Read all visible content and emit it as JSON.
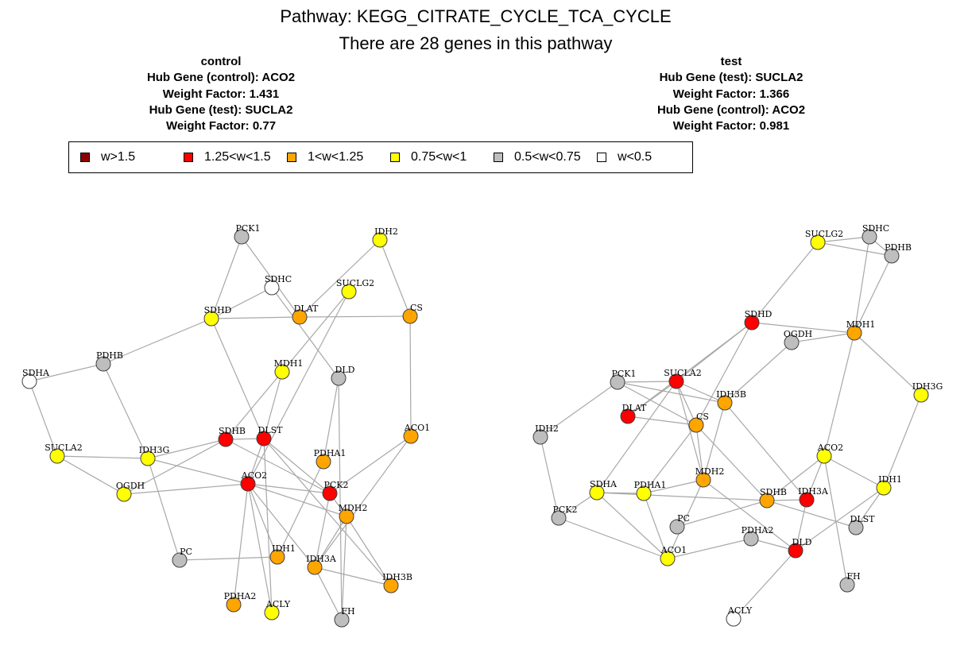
{
  "title": {
    "line1": "Pathway: KEGG_CITRATE_CYCLE_TCA_CYCLE",
    "line2": "There are 28 genes in this pathway"
  },
  "control_info": {
    "heading": "control",
    "hub_control": "Hub Gene (control):   ACO2",
    "weight_control": "Weight Factor:   1.431",
    "hub_test": "Hub Gene (test):   SUCLA2",
    "weight_test": "Weight Factor:   0.77"
  },
  "test_info": {
    "heading": "test",
    "hub_test": "Hub Gene (test):   SUCLA2",
    "weight_test": "Weight Factor:   1.366",
    "hub_control": "Hub Gene (control):   ACO2",
    "weight_control": "Weight Factor:   0.981"
  },
  "legend": [
    {
      "label": "w>1.5",
      "color": "#8b0000"
    },
    {
      "label": "1.25<w<1.5",
      "color": "#ff0000"
    },
    {
      "label": "1<w<1.25",
      "color": "#ffa500"
    },
    {
      "label": "0.75<w<1",
      "color": "#ffff00"
    },
    {
      "label": "0.5<w<0.75",
      "color": "#bebebe"
    },
    {
      "label": "w<0.5",
      "color": "#ffffff"
    }
  ],
  "networks": [
    {
      "name": "control",
      "nodes": [
        {
          "id": "PCK1",
          "color": "#bebebe"
        },
        {
          "id": "IDH2",
          "color": "#ffff00"
        },
        {
          "id": "SDHC",
          "color": "#ffffff"
        },
        {
          "id": "SUCLG2",
          "color": "#ffff00"
        },
        {
          "id": "SDHD",
          "color": "#ffff00"
        },
        {
          "id": "DLAT",
          "color": "#ffa500"
        },
        {
          "id": "CS",
          "color": "#ffa500"
        },
        {
          "id": "PDHB",
          "color": "#bebebe"
        },
        {
          "id": "MDH1",
          "color": "#ffff00"
        },
        {
          "id": "DLD",
          "color": "#bebebe"
        },
        {
          "id": "SDHA",
          "color": "#ffffff"
        },
        {
          "id": "SDHB",
          "color": "#ff0000"
        },
        {
          "id": "DLST",
          "color": "#ff0000"
        },
        {
          "id": "ACO1",
          "color": "#ffa500"
        },
        {
          "id": "SUCLA2",
          "color": "#ffff00"
        },
        {
          "id": "IDH3G",
          "color": "#ffff00"
        },
        {
          "id": "PDHA1",
          "color": "#ffa500"
        },
        {
          "id": "ACO2",
          "color": "#ff0000"
        },
        {
          "id": "PCK2",
          "color": "#ff0000"
        },
        {
          "id": "OGDH",
          "color": "#ffff00"
        },
        {
          "id": "MDH2",
          "color": "#ffa500"
        },
        {
          "id": "PC",
          "color": "#bebebe"
        },
        {
          "id": "IDH1",
          "color": "#ffa500"
        },
        {
          "id": "IDH3A",
          "color": "#ffa500"
        },
        {
          "id": "IDH3B",
          "color": "#ffa500"
        },
        {
          "id": "PDHA2",
          "color": "#ffa500"
        },
        {
          "id": "ACLY",
          "color": "#ffff00"
        },
        {
          "id": "FH",
          "color": "#bebebe"
        }
      ],
      "edges": [
        [
          "PCK1",
          "SDHD"
        ],
        [
          "PCK1",
          "DLAT"
        ],
        [
          "SDHC",
          "SDHD"
        ],
        [
          "SDHC",
          "DLD"
        ],
        [
          "IDH2",
          "DLAT"
        ],
        [
          "IDH2",
          "CS"
        ],
        [
          "SDHD",
          "DLAT"
        ],
        [
          "DLAT",
          "CS"
        ],
        [
          "SDHD",
          "PDHB"
        ],
        [
          "SDHD",
          "DLST"
        ],
        [
          "SUCLG2",
          "MDH1"
        ],
        [
          "SUCLG2",
          "ACO2"
        ],
        [
          "CS",
          "ACO1"
        ],
        [
          "PDHB",
          "SDHA"
        ],
        [
          "PDHB",
          "IDH3G"
        ],
        [
          "SDHA",
          "SUCLA2"
        ],
        [
          "SUCLA2",
          "IDH3G"
        ],
        [
          "SUCLA2",
          "OGDH"
        ],
        [
          "IDH3G",
          "SDHB"
        ],
        [
          "IDH3G",
          "PC"
        ],
        [
          "IDH3G",
          "ACO2"
        ],
        [
          "OGDH",
          "SDHB"
        ],
        [
          "MDH1",
          "SDHB"
        ],
        [
          "MDH1",
          "DLST"
        ],
        [
          "SDHB",
          "DLST"
        ],
        [
          "SDHB",
          "PCK2"
        ],
        [
          "DLST",
          "PCK2"
        ],
        [
          "DLST",
          "ACO2"
        ],
        [
          "DLST",
          "ACLY"
        ],
        [
          "DLST",
          "IDH3B"
        ],
        [
          "DLD",
          "PDHA1"
        ],
        [
          "DLD",
          "FH"
        ],
        [
          "ACO1",
          "PCK2"
        ],
        [
          "ACO1",
          "IDH3A"
        ],
        [
          "PDHA1",
          "IDH1"
        ],
        [
          "ACO2",
          "PCK2"
        ],
        [
          "ACO2",
          "MDH2"
        ],
        [
          "ACO2",
          "IDH1"
        ],
        [
          "ACO2",
          "PDHA2"
        ],
        [
          "ACO2",
          "ACLY"
        ],
        [
          "ACO2",
          "IDH3A"
        ],
        [
          "PCK2",
          "MDH2"
        ],
        [
          "PCK2",
          "IDH3A"
        ],
        [
          "MDH2",
          "IDH3A"
        ],
        [
          "MDH2",
          "IDH3B"
        ],
        [
          "MDH2",
          "FH"
        ],
        [
          "IDH3A",
          "IDH3B"
        ],
        [
          "IDH3A",
          "FH"
        ],
        [
          "PC",
          "IDH1"
        ],
        [
          "ACO2",
          "OGDH"
        ]
      ]
    },
    {
      "name": "test",
      "nodes": [
        {
          "id": "SUCLG2",
          "color": "#ffff00"
        },
        {
          "id": "SDHC",
          "color": "#bebebe"
        },
        {
          "id": "PDHB",
          "color": "#bebebe"
        },
        {
          "id": "SDHD",
          "color": "#ff0000"
        },
        {
          "id": "MDH1",
          "color": "#ffa500"
        },
        {
          "id": "OGDH",
          "color": "#bebebe"
        },
        {
          "id": "PCK1",
          "color": "#bebebe"
        },
        {
          "id": "SUCLA2",
          "color": "#ff0000"
        },
        {
          "id": "IDH3B",
          "color": "#ffa500"
        },
        {
          "id": "IDH3G",
          "color": "#ffff00"
        },
        {
          "id": "DLAT",
          "color": "#ff0000"
        },
        {
          "id": "CS",
          "color": "#ffa500"
        },
        {
          "id": "IDH2",
          "color": "#bebebe"
        },
        {
          "id": "ACO2",
          "color": "#ffff00"
        },
        {
          "id": "MDH2",
          "color": "#ffa500"
        },
        {
          "id": "IDH1",
          "color": "#ffff00"
        },
        {
          "id": "SDHA",
          "color": "#ffff00"
        },
        {
          "id": "PDHA1",
          "color": "#ffff00"
        },
        {
          "id": "SDHB",
          "color": "#ffa500"
        },
        {
          "id": "IDH3A",
          "color": "#ff0000"
        },
        {
          "id": "PCK2",
          "color": "#bebebe"
        },
        {
          "id": "PC",
          "color": "#bebebe"
        },
        {
          "id": "DLST",
          "color": "#bebebe"
        },
        {
          "id": "PDHA2",
          "color": "#bebebe"
        },
        {
          "id": "DLD",
          "color": "#ff0000"
        },
        {
          "id": "ACO1",
          "color": "#ffff00"
        },
        {
          "id": "FH",
          "color": "#bebebe"
        },
        {
          "id": "ACLY",
          "color": "#ffffff"
        }
      ],
      "edges": [
        [
          "SUCLG2",
          "SDHC"
        ],
        [
          "SUCLG2",
          "PDHB"
        ],
        [
          "SUCLG2",
          "SDHD"
        ],
        [
          "SDHC",
          "PDHB"
        ],
        [
          "SDHC",
          "MDH1"
        ],
        [
          "PDHB",
          "MDH1"
        ],
        [
          "SDHD",
          "MDH1"
        ],
        [
          "SDHD",
          "SUCLA2"
        ],
        [
          "SDHD",
          "DLAT"
        ],
        [
          "SDHD",
          "CS"
        ],
        [
          "OGDH",
          "MDH1"
        ],
        [
          "OGDH",
          "IDH3B"
        ],
        [
          "MDH1",
          "IDH3G"
        ],
        [
          "MDH1",
          "ACO2"
        ],
        [
          "PCK1",
          "SUCLA2"
        ],
        [
          "PCK1",
          "IDH3B"
        ],
        [
          "PCK1",
          "CS"
        ],
        [
          "PCK1",
          "IDH2"
        ],
        [
          "SUCLA2",
          "DLAT"
        ],
        [
          "SUCLA2",
          "IDH3B"
        ],
        [
          "SUCLA2",
          "CS"
        ],
        [
          "SUCLA2",
          "MDH2"
        ],
        [
          "SUCLA2",
          "SDHA"
        ],
        [
          "IDH3B",
          "MDH2"
        ],
        [
          "IDH3B",
          "IDH3A"
        ],
        [
          "DLAT",
          "CS"
        ],
        [
          "CS",
          "MDH2"
        ],
        [
          "CS",
          "PDHA1"
        ],
        [
          "CS",
          "SDHB"
        ],
        [
          "IDH3G",
          "IDH1"
        ],
        [
          "IDH2",
          "PCK2"
        ],
        [
          "ACO2",
          "SDHB"
        ],
        [
          "ACO2",
          "IDH1"
        ],
        [
          "ACO2",
          "IDH3A"
        ],
        [
          "ACO2",
          "FH"
        ],
        [
          "MDH2",
          "PDHA1"
        ],
        [
          "MDH2",
          "ACO1"
        ],
        [
          "MDH2",
          "DLD"
        ],
        [
          "IDH1",
          "DLD"
        ],
        [
          "IDH1",
          "DLST"
        ],
        [
          "SDHA",
          "PDHA1"
        ],
        [
          "SDHA",
          "SDHB"
        ],
        [
          "SDHB",
          "IDH3A"
        ],
        [
          "SDHB",
          "PC"
        ],
        [
          "SDHB",
          "DLST"
        ],
        [
          "IDH3A",
          "DLD"
        ],
        [
          "PCK2",
          "SDHA"
        ],
        [
          "PCK2",
          "ACO1"
        ],
        [
          "PDHA1",
          "ACO1"
        ],
        [
          "ACO1",
          "PDHA2"
        ],
        [
          "PDHA2",
          "DLD"
        ],
        [
          "DLD",
          "ACLY"
        ],
        [
          "SDHA",
          "ACO1"
        ]
      ]
    }
  ]
}
